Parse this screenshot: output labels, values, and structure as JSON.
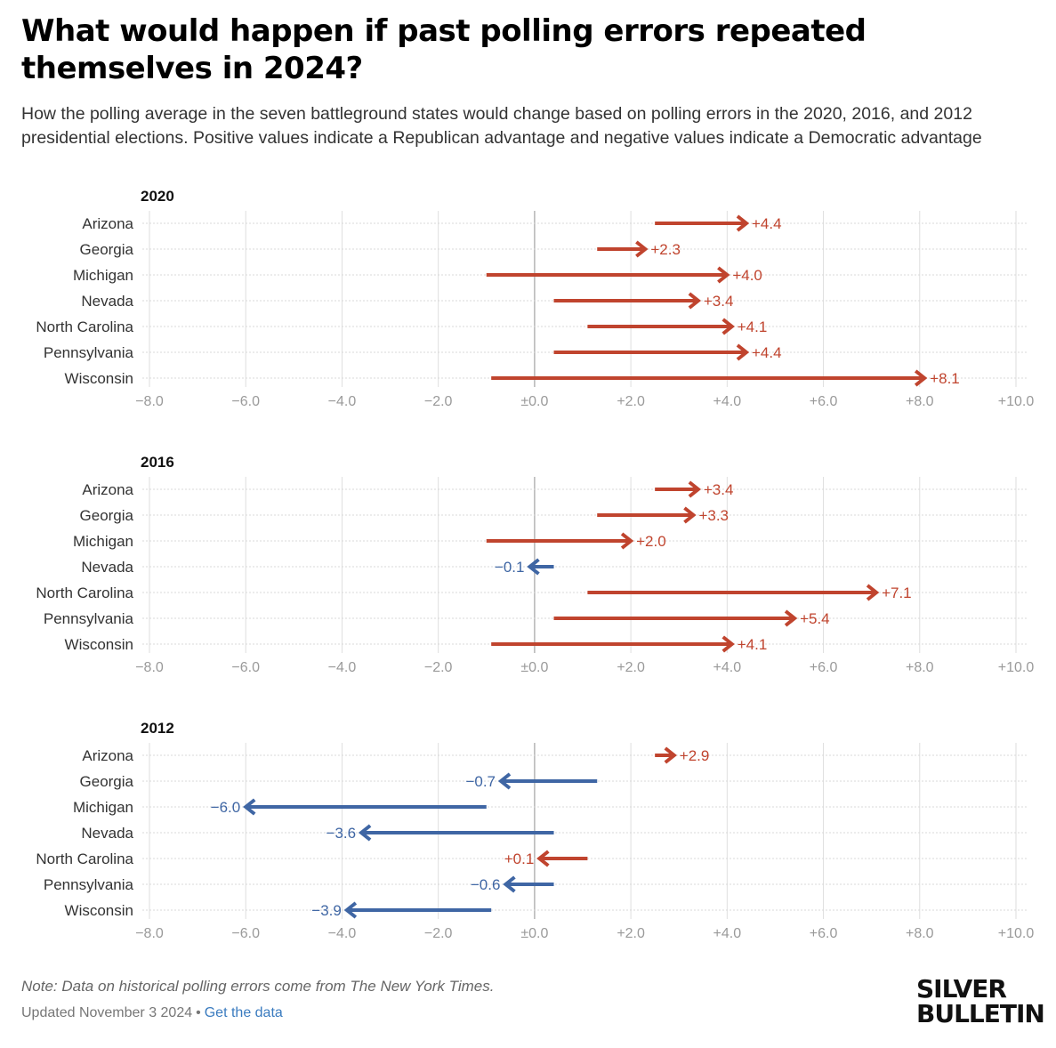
{
  "title": "What would happen if past polling errors repeated themselves in 2024?",
  "subtitle": "How the polling average in the seven battleground states would change based on polling errors in the 2020, 2016, and 2012 presidential elections. Positive values indicate a Republican advantage and negative values indicate a Democratic advantage",
  "colors": {
    "republican": "#c0442e",
    "democratic": "#3f66a4",
    "axis": "#9a9a9a",
    "grid": "#dedede"
  },
  "chart_data": [
    {
      "type": "arrow",
      "title": "2020",
      "categories": [
        "Arizona",
        "Georgia",
        "Michigan",
        "Nevada",
        "North Carolina",
        "Pennsylvania",
        "Wisconsin"
      ],
      "start": [
        2.5,
        1.3,
        -1.0,
        0.4,
        1.1,
        0.4,
        -0.9
      ],
      "values": [
        4.4,
        2.3,
        4.0,
        3.4,
        4.1,
        4.4,
        8.1
      ],
      "labels": [
        "+4.4",
        "+2.3",
        "+4.0",
        "+3.4",
        "+4.1",
        "+4.4",
        "+8.1"
      ],
      "xlim": [
        -8,
        10
      ],
      "xticks": [
        "−8.0",
        "−6.0",
        "−4.0",
        "−2.0",
        "±0.0",
        "+2.0",
        "+4.0",
        "+6.0",
        "+8.0",
        "+10.0"
      ]
    },
    {
      "type": "arrow",
      "title": "2016",
      "categories": [
        "Arizona",
        "Georgia",
        "Michigan",
        "Nevada",
        "North Carolina",
        "Pennsylvania",
        "Wisconsin"
      ],
      "start": [
        2.5,
        1.3,
        -1.0,
        0.4,
        1.1,
        0.4,
        -0.9
      ],
      "values": [
        3.4,
        3.3,
        2.0,
        -0.1,
        7.1,
        5.4,
        4.1
      ],
      "labels": [
        "+3.4",
        "+3.3",
        "+2.0",
        "−0.1",
        "+7.1",
        "+5.4",
        "+4.1"
      ],
      "xlim": [
        -8,
        10
      ],
      "xticks": [
        "−8.0",
        "−6.0",
        "−4.0",
        "−2.0",
        "±0.0",
        "+2.0",
        "+4.0",
        "+6.0",
        "+8.0",
        "+10.0"
      ]
    },
    {
      "type": "arrow",
      "title": "2012",
      "categories": [
        "Arizona",
        "Georgia",
        "Michigan",
        "Nevada",
        "North Carolina",
        "Pennsylvania",
        "Wisconsin"
      ],
      "start": [
        2.5,
        1.3,
        -1.0,
        0.4,
        1.1,
        0.4,
        -0.9
      ],
      "values": [
        2.9,
        -0.7,
        -6.0,
        -3.6,
        0.1,
        -0.6,
        -3.9
      ],
      "labels": [
        "+2.9",
        "−0.7",
        "−6.0",
        "−3.6",
        "+0.1",
        "−0.6",
        "−3.9"
      ],
      "xlim": [
        -8,
        10
      ],
      "xticks": [
        "−8.0",
        "−6.0",
        "−4.0",
        "−2.0",
        "±0.0",
        "+2.0",
        "+4.0",
        "+6.0",
        "+8.0",
        "+10.0"
      ]
    }
  ],
  "footer": {
    "note": "Note: Data on historical polling errors come from The New York Times.",
    "updated": "Updated November 3 2024",
    "separator": "•",
    "link": "Get the data"
  },
  "logo": {
    "line1": "SILVER",
    "line2": "BULLETIN"
  }
}
